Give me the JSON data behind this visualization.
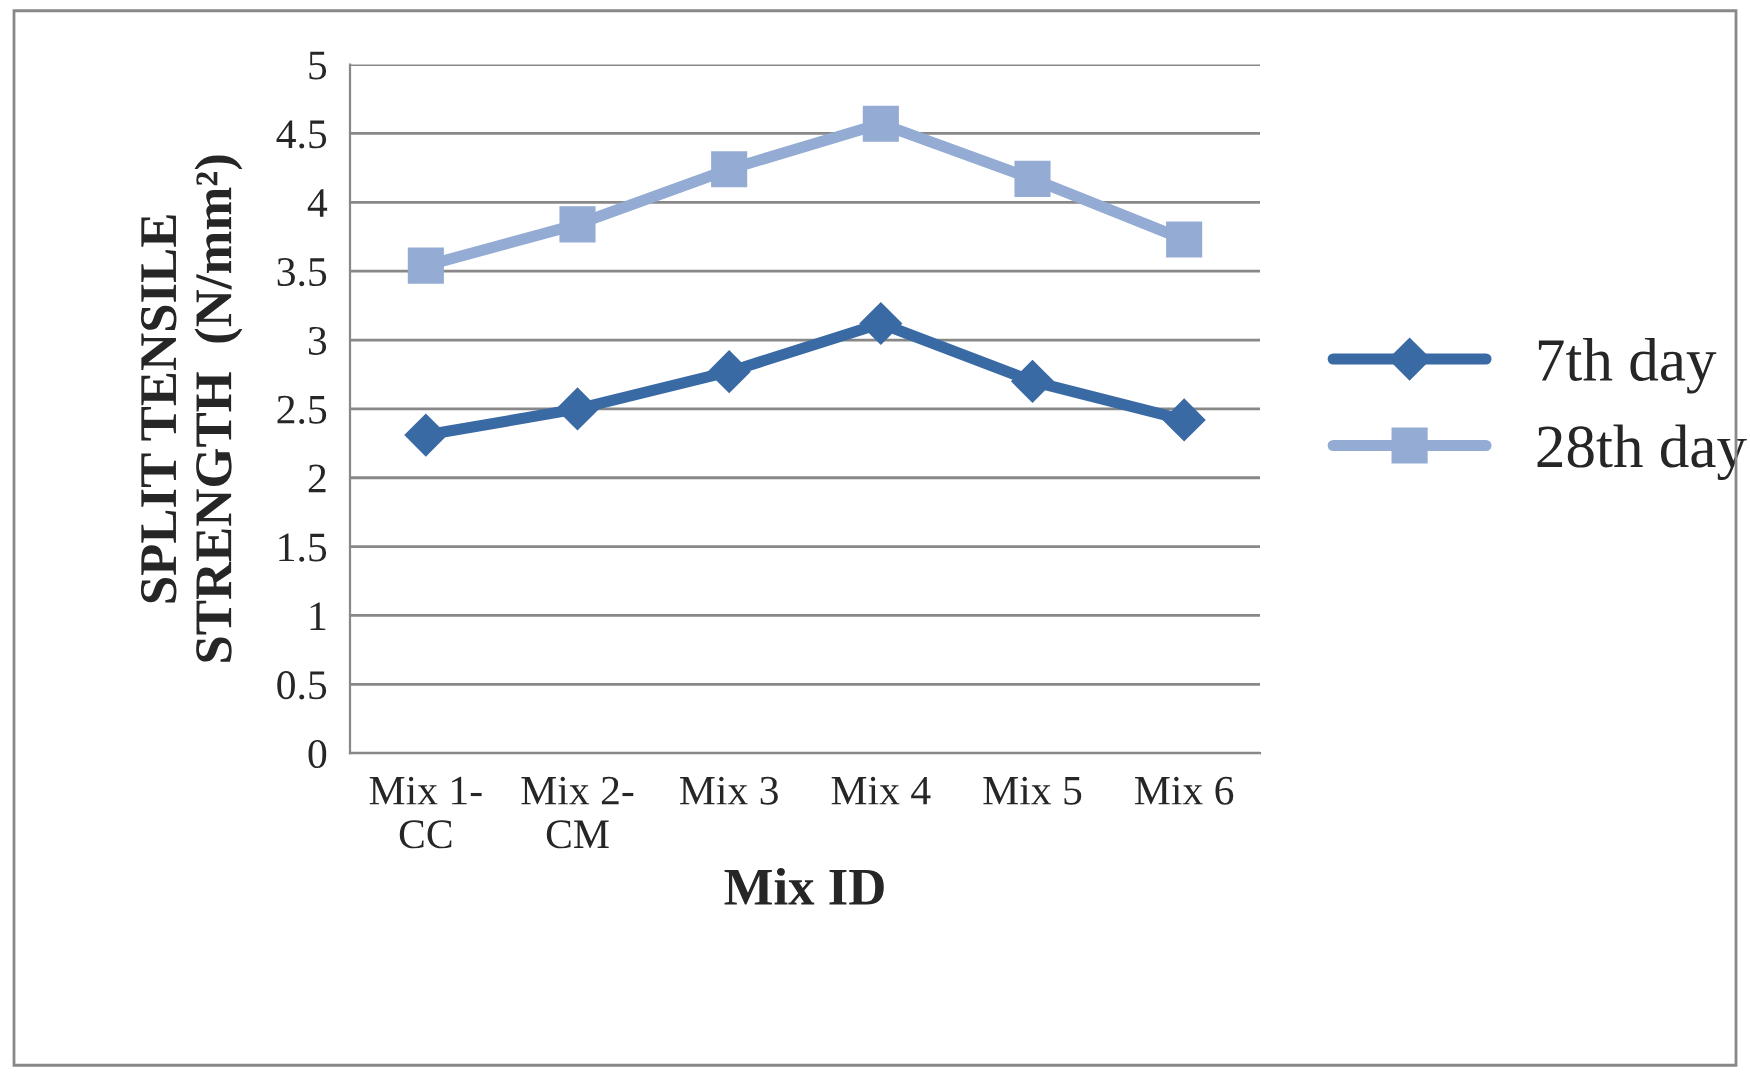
{
  "chart_data": {
    "type": "line",
    "xlabel": "Mix ID",
    "ylabel": "SPLIT TENSILE\nSTRENGTH  (N/mm²)",
    "categories": [
      "Mix 1-\nCC",
      "Mix 2-\nCM",
      "Mix 3",
      "Mix 4",
      "Mix 5",
      "Mix 6"
    ],
    "series": [
      {
        "name": "7th day",
        "color": "#3a6aa4",
        "marker": "diamond",
        "values": [
          2.31,
          2.5,
          2.77,
          3.12,
          2.7,
          2.42
        ]
      },
      {
        "name": "28th day",
        "color": "#94abd3",
        "marker": "square",
        "values": [
          3.54,
          3.84,
          4.24,
          4.57,
          4.17,
          3.73
        ]
      }
    ],
    "ylim": [
      0,
      5
    ],
    "yticks": [
      0,
      0.5,
      1,
      1.5,
      2,
      2.5,
      3,
      3.5,
      4,
      4.5,
      5
    ],
    "grid": "y",
    "legend": "right"
  }
}
